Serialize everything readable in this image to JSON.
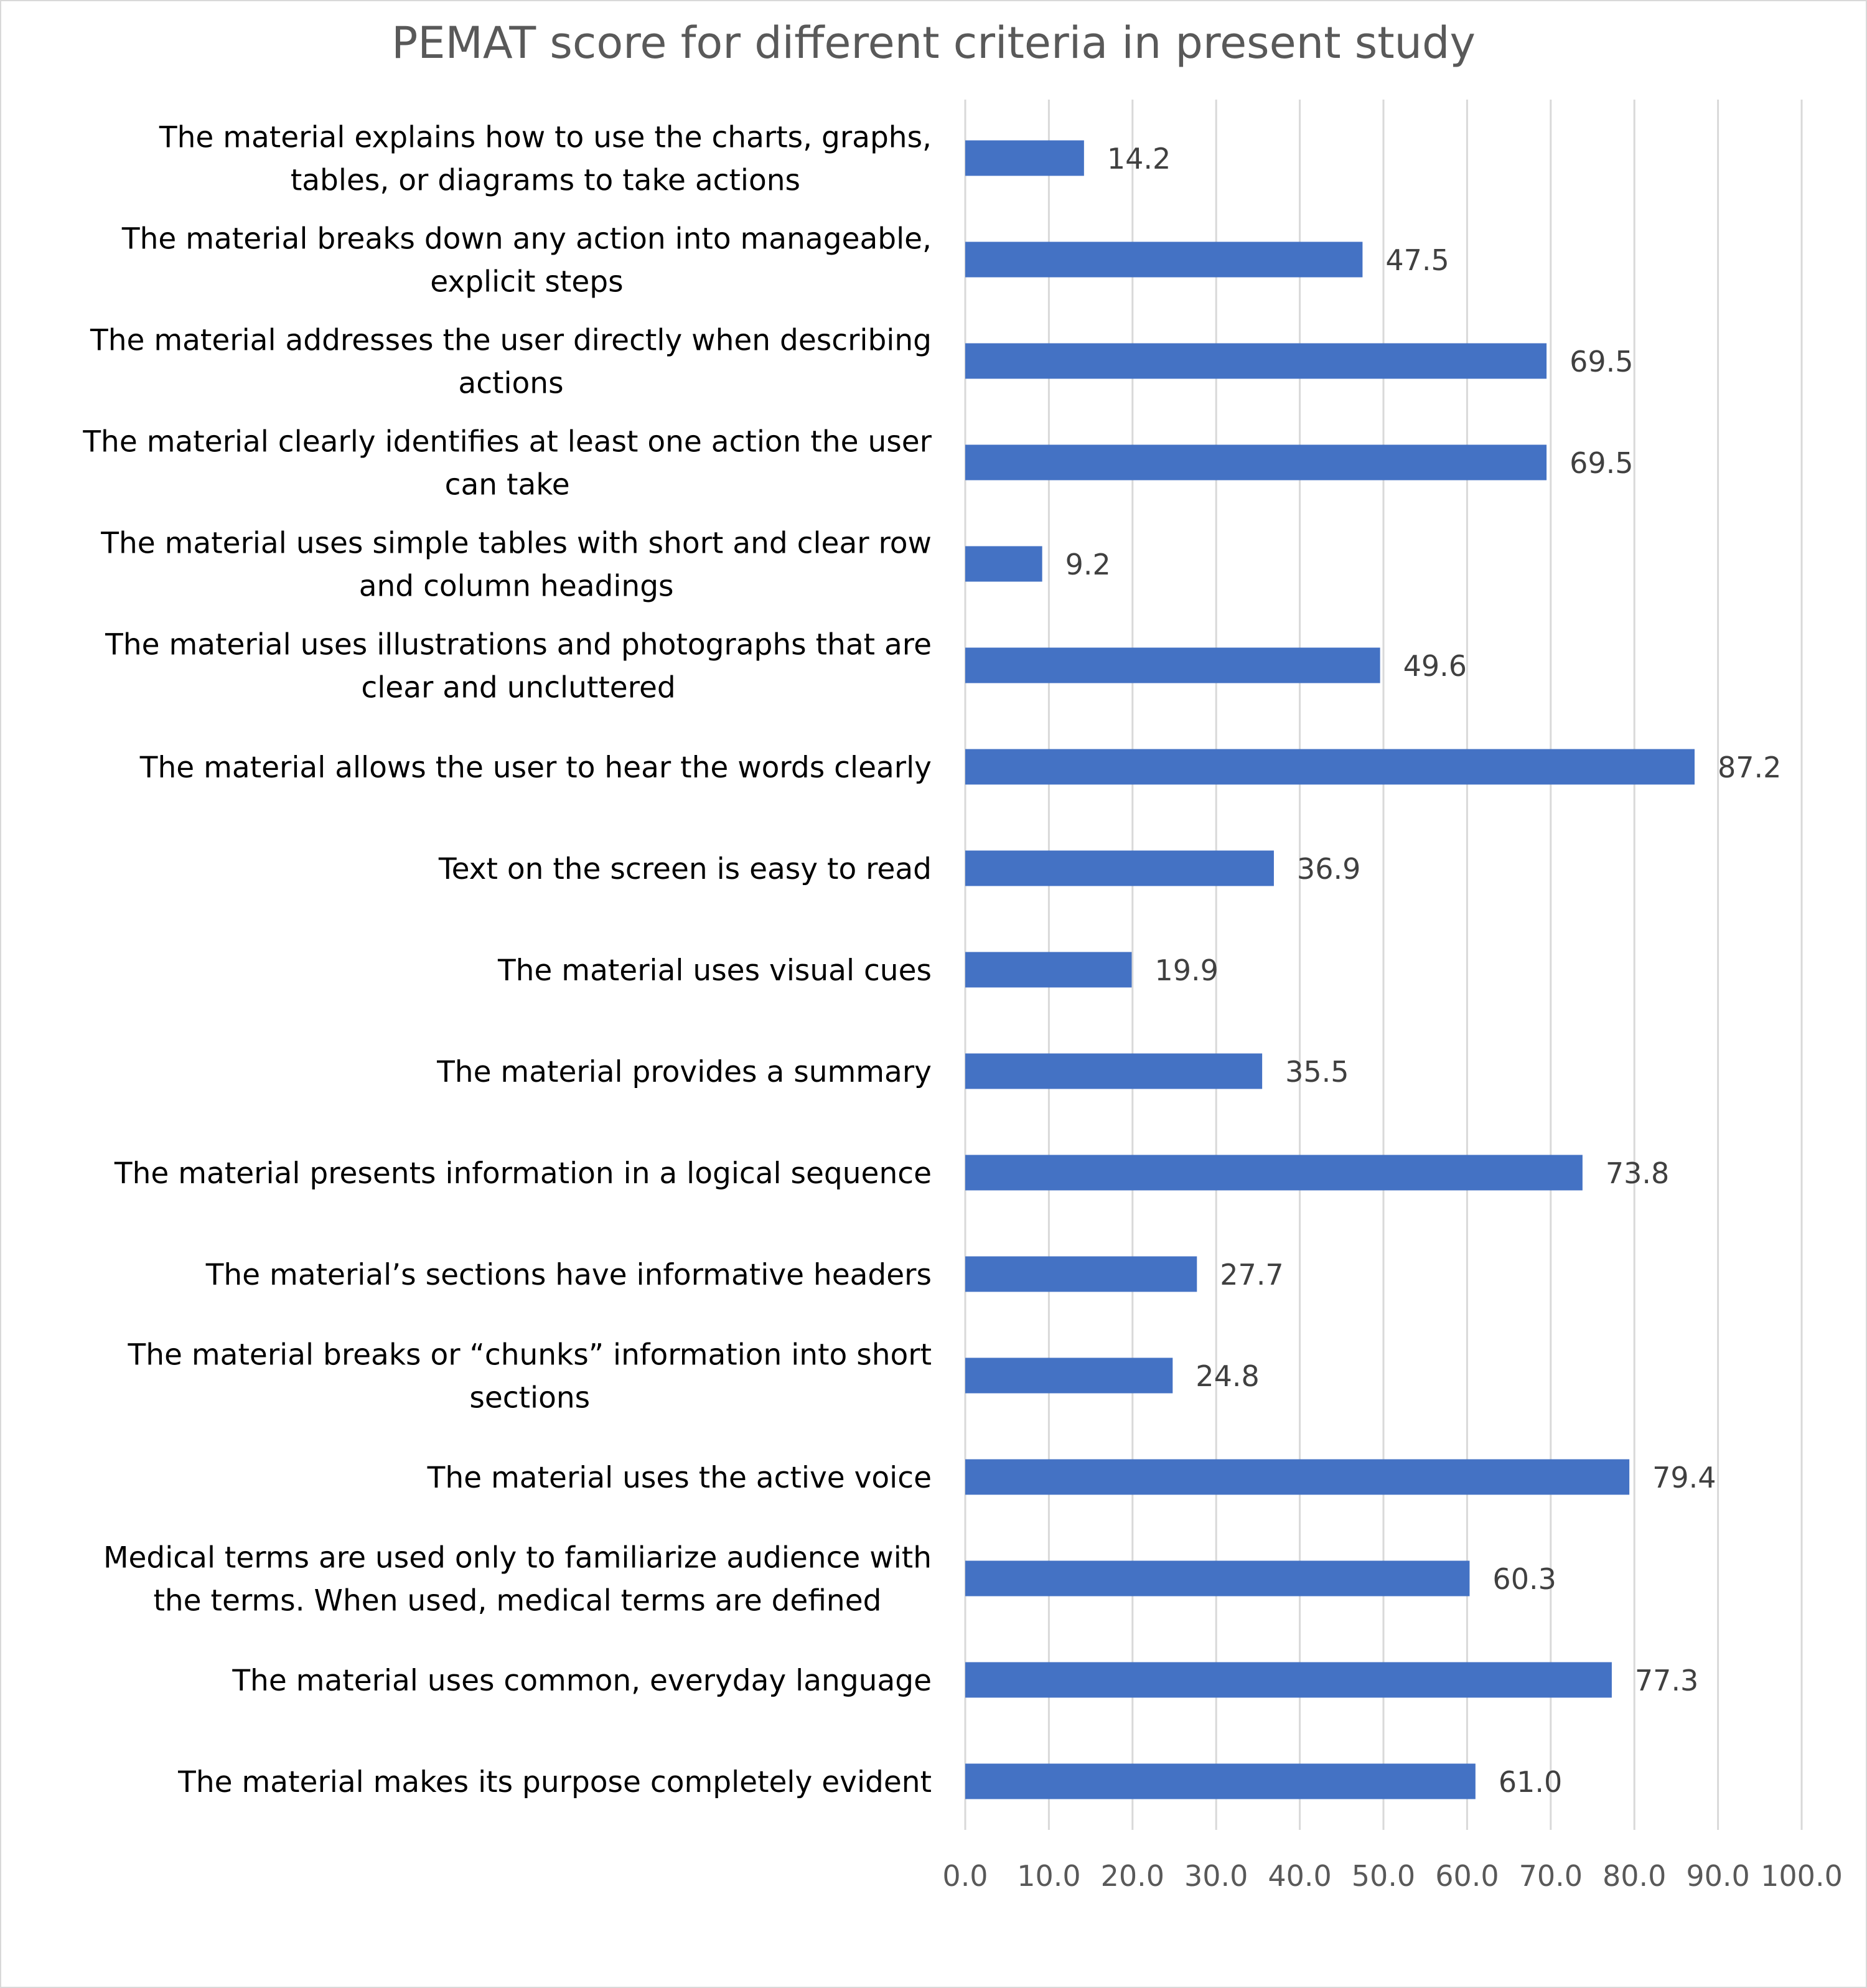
{
  "chart_data": {
    "type": "bar",
    "orientation": "horizontal",
    "title": "PEMAT score for different criteria in present study",
    "xlabel": "",
    "ylabel": "",
    "xlim": [
      0,
      100
    ],
    "grid": true,
    "legend": "none",
    "colors": {
      "bar": "#4472C4",
      "gridline": "#d9d9d9",
      "title": "#595959",
      "tick": "#595959",
      "data_label": "#404040",
      "category": "#000000",
      "border": "#d9d9d9"
    },
    "tick_labels": [
      "0.0",
      "10.0",
      "20.0",
      "30.0",
      "40.0",
      "50.0",
      "60.0",
      "70.0",
      "80.0",
      "90.0",
      "100.0"
    ],
    "categories": [
      "The material explains how to use the charts, graphs, tables, or diagrams to take actions",
      "The material breaks down any action into manageable, explicit steps",
      "The material addresses the user directly when describing actions",
      "The material clearly identifies at least one action the user can take",
      "The material uses simple tables with short and clear row and column headings",
      "The material uses illustrations and photographs that are clear and uncluttered",
      "The material allows the user to hear the words clearly",
      "Text on the screen is easy to read",
      "The material uses visual cues",
      "The material provides a summary",
      "The material presents information in a logical sequence",
      "The material’s sections have informative headers",
      "The material breaks or “chunks” information into short sections",
      "The material uses the active voice",
      "Medical terms are used only to familiarize audience with the terms. When used, medical terms are defined",
      "The material uses common, everyday language",
      "The material makes its purpose completely evident"
    ],
    "category_lines": [
      [
        "The material explains how to use the charts, graphs,",
        "tables, or diagrams to take actions"
      ],
      [
        "The material breaks down any action into manageable,",
        "explicit steps"
      ],
      [
        "The material addresses the user directly when describing",
        "actions"
      ],
      [
        "The material clearly identifies at least one action the user",
        "can take"
      ],
      [
        "The material uses simple tables with short and clear row",
        "and column headings"
      ],
      [
        "The material uses illustrations and photographs that are",
        "clear and uncluttered"
      ],
      [
        "The material allows the user to hear the words clearly"
      ],
      [
        "Text on the screen is easy to read"
      ],
      [
        "The material uses visual cues"
      ],
      [
        "The material provides a summary"
      ],
      [
        "The material presents information in a logical sequence"
      ],
      [
        "The material’s sections have informative headers"
      ],
      [
        "The material breaks or “chunks” information into short",
        "sections"
      ],
      [
        "The material uses the active voice"
      ],
      [
        "Medical terms are used only to familiarize audience with",
        "the terms. When used, medical terms are defined"
      ],
      [
        "The material uses common, everyday language"
      ],
      [
        "The material makes its purpose completely evident"
      ]
    ],
    "values": [
      14.2,
      47.5,
      69.5,
      69.5,
      9.2,
      49.6,
      87.2,
      36.9,
      19.9,
      35.5,
      73.8,
      27.7,
      24.8,
      79.4,
      60.3,
      77.3,
      61.0
    ],
    "data_labels": [
      "14.2",
      "47.5",
      "69.5",
      "69.5",
      "9.2",
      "49.6",
      "87.2",
      "36.9",
      "19.9",
      "35.5",
      "73.8",
      "27.7",
      "24.8",
      "79.4",
      "60.3",
      "77.3",
      "61.0"
    ]
  }
}
